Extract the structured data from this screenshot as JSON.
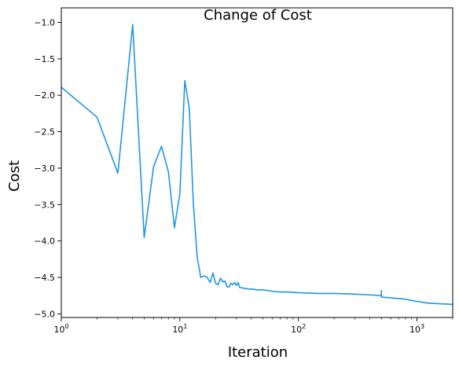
{
  "chart_data": {
    "type": "line",
    "title": "Change of Cost",
    "xlabel": "Iteration",
    "ylabel": "Cost",
    "xscale": "log",
    "xlim": [
      1,
      2000
    ],
    "ylim": [
      -5.05,
      -0.8
    ],
    "grid": false,
    "x_ticks": [
      1,
      10,
      100,
      1000
    ],
    "x_tick_labels": [
      {
        "base": "10",
        "exp": "0"
      },
      {
        "base": "10",
        "exp": "1"
      },
      {
        "base": "10",
        "exp": "2"
      },
      {
        "base": "10",
        "exp": "3"
      }
    ],
    "y_ticks": [
      -1.0,
      -1.5,
      -2.0,
      -2.5,
      -3.0,
      -3.5,
      -4.0,
      -4.5,
      -5.0
    ],
    "y_tick_labels": [
      "−1.0",
      "−1.5",
      "−2.0",
      "−2.5",
      "−3.0",
      "−3.5",
      "−4.0",
      "−4.5",
      "−5.0"
    ],
    "line_color": "#2196e3",
    "series": [
      {
        "x": [
          1,
          2,
          3,
          4,
          5,
          6,
          7,
          8,
          9,
          10,
          11,
          12,
          13,
          14,
          15,
          16,
          17,
          18,
          19,
          20,
          21,
          22,
          23,
          24,
          25,
          26,
          27,
          28,
          29,
          30,
          31,
          32,
          33,
          35,
          38,
          40,
          45,
          50,
          55,
          60,
          70,
          80,
          100,
          150,
          200,
          300,
          400,
          500,
          500,
          501,
          600,
          700,
          800,
          1000,
          1200,
          1500,
          2000
        ],
        "y": [
          -1.89,
          -2.3,
          -3.07,
          -1.03,
          -3.95,
          -2.98,
          -2.7,
          -3.05,
          -3.82,
          -3.35,
          -1.8,
          -2.17,
          -3.5,
          -4.22,
          -4.5,
          -4.48,
          -4.5,
          -4.57,
          -4.44,
          -4.58,
          -4.6,
          -4.51,
          -4.56,
          -4.55,
          -4.63,
          -4.63,
          -4.58,
          -4.6,
          -4.57,
          -4.61,
          -4.57,
          -4.64,
          -4.64,
          -4.65,
          -4.66,
          -4.66,
          -4.67,
          -4.67,
          -4.68,
          -4.69,
          -4.7,
          -4.7,
          -4.71,
          -4.72,
          -4.72,
          -4.73,
          -4.74,
          -4.75,
          -4.68,
          -4.77,
          -4.78,
          -4.79,
          -4.8,
          -4.83,
          -4.85,
          -4.86,
          -4.87
        ]
      }
    ]
  }
}
